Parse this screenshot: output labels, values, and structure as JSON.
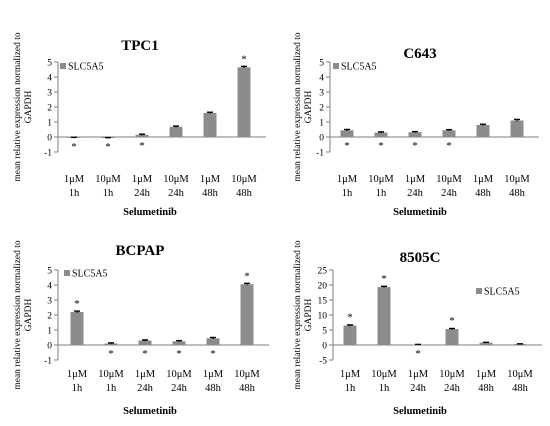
{
  "chart_data": [
    {
      "type": "bar",
      "title": "TPC1",
      "ylabel_lines": [
        "mean relative  expression normalized to",
        "GAPDH"
      ],
      "xlabel": "Selumetinib",
      "categories": [
        [
          "1μM",
          "1h"
        ],
        [
          "10μM",
          "1h"
        ],
        [
          "1μM",
          "24h"
        ],
        [
          "10μM",
          "24h"
        ],
        [
          "1μM",
          "48h"
        ],
        [
          "10μM",
          "48h"
        ]
      ],
      "series": [
        {
          "name": "SLC5A5",
          "values": [
            -0.05,
            -0.07,
            0.15,
            0.68,
            1.6,
            4.65
          ],
          "errors": [
            0.03,
            0.03,
            0.04,
            0.05,
            0.05,
            0.06
          ]
        }
      ],
      "significant": [
        "below",
        "below",
        "below",
        "",
        "",
        "above"
      ],
      "ylim": [
        -1,
        5
      ],
      "yticks": [
        -1,
        0,
        1,
        2,
        3,
        4,
        5
      ],
      "legend_position": "top-left",
      "color": "#8c8c8c"
    },
    {
      "type": "bar",
      "title": "C643",
      "ylabel_lines": [
        "mean relative  expression normalized to",
        "GAPDH"
      ],
      "xlabel": "Selumetinib",
      "categories": [
        [
          "1μM",
          "1h"
        ],
        [
          "10μM",
          "1h"
        ],
        [
          "1μM",
          "24h"
        ],
        [
          "10μM",
          "24h"
        ],
        [
          "1μM",
          "48h"
        ],
        [
          "10μM",
          "48h"
        ]
      ],
      "series": [
        {
          "name": "SLC5A5",
          "values": [
            0.45,
            0.3,
            0.32,
            0.45,
            0.8,
            1.1
          ],
          "errors": [
            0.05,
            0.04,
            0.04,
            0.04,
            0.05,
            0.07
          ]
        }
      ],
      "significant": [
        "below",
        "below",
        "below",
        "below",
        "",
        ""
      ],
      "ylim": [
        -1,
        5
      ],
      "yticks": [
        -1,
        0,
        1,
        2,
        3,
        4,
        5
      ],
      "legend_position": "top-left",
      "color": "#8c8c8c"
    },
    {
      "type": "bar",
      "title": "BCPAP",
      "ylabel_lines": [
        "mean relative  expression normalized to",
        "GAPDH"
      ],
      "xlabel": "Selumetinib",
      "categories": [
        [
          "1μM",
          "1h"
        ],
        [
          "10μM",
          "1h"
        ],
        [
          "1μM",
          "24h"
        ],
        [
          "10μM",
          "24h"
        ],
        [
          "1μM",
          "48h"
        ],
        [
          "10μM",
          "48h"
        ]
      ],
      "series": [
        {
          "name": "SLC5A5",
          "values": [
            2.2,
            0.1,
            0.3,
            0.25,
            0.45,
            4.05
          ],
          "errors": [
            0.06,
            0.04,
            0.04,
            0.04,
            0.05,
            0.06
          ]
        }
      ],
      "significant": [
        "above",
        "below",
        "below",
        "below",
        "below",
        "above"
      ],
      "ylim": [
        -1,
        5
      ],
      "yticks": [
        -1,
        0,
        1,
        2,
        3,
        4,
        5
      ],
      "legend_position": "top-left",
      "color": "#8c8c8c"
    },
    {
      "type": "bar",
      "title": "8505C",
      "ylabel_lines": [
        "mean relative  expression normalized to",
        "GAPDH"
      ],
      "xlabel": "Selumetinib",
      "categories": [
        [
          "1μM",
          "1h"
        ],
        [
          "10μM",
          "1h"
        ],
        [
          "1μM",
          "24h"
        ],
        [
          "10μM",
          "24h"
        ],
        [
          "1μM",
          "48h"
        ],
        [
          "10μM",
          "48h"
        ]
      ],
      "series": [
        {
          "name": "SLC5A5",
          "values": [
            6.5,
            19.3,
            0.1,
            5.3,
            0.8,
            0.3
          ],
          "errors": [
            0.2,
            0.25,
            0.1,
            0.2,
            0.1,
            0.1
          ]
        }
      ],
      "significant": [
        "above",
        "above",
        "below",
        "above",
        "",
        ""
      ],
      "ylim": [
        -5,
        25
      ],
      "yticks": [
        -5,
        0,
        5,
        10,
        15,
        20,
        25
      ],
      "legend_position": "top-right",
      "color": "#8c8c8c"
    }
  ]
}
